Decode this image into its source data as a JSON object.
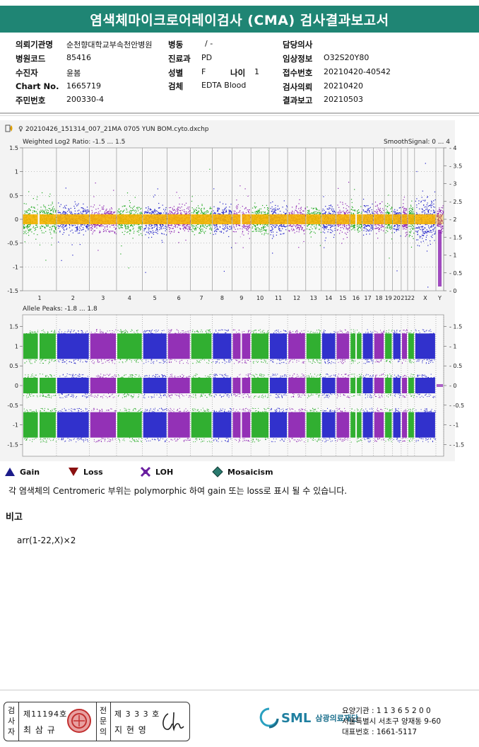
{
  "header": {
    "title": "염색체마이크로어레이검사 (CMA) 검사결과보고서"
  },
  "info": {
    "fields": [
      {
        "label": "의뢰기관명",
        "value": "순천향대학교부속천안병원"
      },
      {
        "label": "병원코드",
        "value": "85416"
      },
      {
        "label": "수진자",
        "value": "윤봄"
      },
      {
        "label": "Chart No.",
        "value": "1665719"
      },
      {
        "label": "주민번호",
        "value": "200330-4"
      },
      {
        "label": "병동",
        "value": "/ -"
      },
      {
        "label": "진료과",
        "value": "PD"
      },
      {
        "label": "성별",
        "value": "F"
      },
      {
        "label": "나이",
        "value": "1"
      },
      {
        "label": "검체",
        "value": "EDTA Blood"
      },
      {
        "label": "담당의사",
        "value": ""
      },
      {
        "label": "임상정보",
        "value": "O32S20Y80"
      },
      {
        "label": "접수번호",
        "value": "20210420-40542"
      },
      {
        "label": "검사의뢰",
        "value": "20210420"
      },
      {
        "label": "결과보고",
        "value": "20210503"
      }
    ]
  },
  "plot": {
    "filename": "20210426_151314_007_21MA 0705 YUN BOM.cyto.dxchp",
    "top_panel": {
      "title": "Weighted Log2 Ratio: -1.5 ... 1.5",
      "right_title": "SmoothSignal: 0 ... 4",
      "left_ticks": [
        "1.5",
        "1",
        "0.5",
        "0",
        "-0.5",
        "-1",
        "-1.5"
      ],
      "right_ticks": [
        "4",
        "3.5",
        "3",
        "2.5",
        "2",
        "1.5",
        "1",
        "0.5",
        "0"
      ]
    },
    "bottom_panel": {
      "title": "Allele Peaks: -1.8 ... 1.8",
      "left_ticks": [
        "1.5",
        "1",
        "0.5",
        "0",
        "-0.5",
        "-1",
        "-1.5"
      ],
      "right_ticks": [
        "1.5",
        "1",
        "0.5",
        "0",
        "-0.5",
        "-1",
        "-1.5"
      ]
    },
    "chromosomes": [
      "1",
      "2",
      "3",
      "4",
      "5",
      "6",
      "7",
      "8",
      "9",
      "10",
      "11",
      "12",
      "13",
      "14",
      "15",
      "16",
      "17",
      "18",
      "19",
      "20",
      "21",
      "22",
      "X",
      "Y"
    ],
    "colors": {
      "green": "#1fa81f",
      "blue": "#1f1fc8",
      "purple": "#8a1fb0",
      "orange": "#f5b100"
    }
  },
  "legend": {
    "items": [
      {
        "label": "Gain",
        "icon": "gain-triangle-icon",
        "color": "#1c1c8a"
      },
      {
        "label": "Loss",
        "icon": "loss-triangle-icon",
        "color": "#8a1010"
      },
      {
        "label": "LOH",
        "icon": "loh-cross-icon",
        "color": "#6a1fa0"
      },
      {
        "label": "Mosaicism",
        "icon": "mosaicism-diamond-icon",
        "color": "#2a7a6e"
      }
    ]
  },
  "note": "각 염색체의 Centromeric 부위는 polymorphic 하여 gain 또는 loss로 표시 될 수 있습니다.",
  "remark": {
    "title": "비고",
    "text": "arr(1-22,X)×2"
  },
  "signatures": {
    "tester_label": "검사자",
    "tester_license": "제11194호",
    "tester_name": "최 삼 규",
    "doctor_label": "전문의",
    "doctor_license": "제 3 3 3 호",
    "doctor_name": "지 현 영"
  },
  "institution": {
    "logo_text": "SML",
    "org_name": "삼광의료재단",
    "code_line": "요양기관 : 1 1 3 6 5 2 0 0",
    "address": "서울특별시 서초구 양재동 9-60",
    "phone": "대표번호 : 1661-5117"
  }
}
